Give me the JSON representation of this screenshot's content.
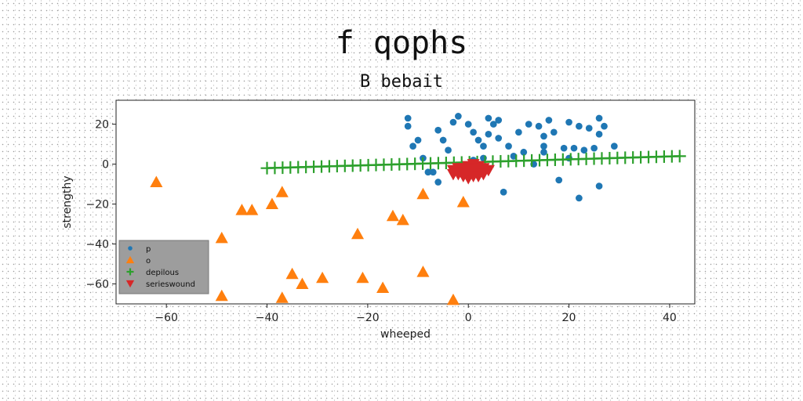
{
  "chart_data": {
    "type": "scatter",
    "title": "f qophs",
    "subtitle": "B bebait",
    "xlabel": "wheeped",
    "ylabel": "strengthy",
    "xlim": [
      -70,
      45
    ],
    "ylim": [
      -70,
      32
    ],
    "xticks": [
      -60,
      -40,
      -20,
      0,
      20,
      40
    ],
    "yticks": [
      20,
      0,
      -20,
      -40,
      -60
    ],
    "grid": false,
    "legend_position": "lower-left",
    "series": [
      {
        "name": "p",
        "marker": "circle",
        "color": "#1f77b4",
        "points": [
          [
            -12,
            23
          ],
          [
            -12,
            19
          ],
          [
            -10,
            12
          ],
          [
            -11,
            9
          ],
          [
            -9,
            3
          ],
          [
            -8,
            -4
          ],
          [
            -7,
            -4
          ],
          [
            -6,
            17
          ],
          [
            -5,
            12
          ],
          [
            -3,
            21
          ],
          [
            -2,
            24
          ],
          [
            0,
            20
          ],
          [
            1,
            16
          ],
          [
            2,
            12
          ],
          [
            3,
            9
          ],
          [
            4,
            15
          ],
          [
            5,
            20
          ],
          [
            6,
            22
          ],
          [
            4,
            23
          ],
          [
            6,
            13
          ],
          [
            8,
            9
          ],
          [
            9,
            4
          ],
          [
            10,
            16
          ],
          [
            11,
            6
          ],
          [
            12,
            20
          ],
          [
            13,
            0
          ],
          [
            14,
            19
          ],
          [
            15,
            14
          ],
          [
            15,
            9
          ],
          [
            15,
            6
          ],
          [
            16,
            22
          ],
          [
            17,
            16
          ],
          [
            18,
            -8
          ],
          [
            19,
            8
          ],
          [
            20,
            3
          ],
          [
            20,
            21
          ],
          [
            21,
            8
          ],
          [
            22,
            -17
          ],
          [
            22,
            19
          ],
          [
            23,
            7
          ],
          [
            24,
            18
          ],
          [
            25,
            8
          ],
          [
            26,
            15
          ],
          [
            26,
            23
          ],
          [
            27,
            19
          ],
          [
            29,
            9
          ],
          [
            26,
            -11
          ],
          [
            7,
            -14
          ],
          [
            -4,
            7
          ],
          [
            -6,
            -9
          ],
          [
            3,
            3
          ],
          [
            1,
            2
          ]
        ]
      },
      {
        "name": "o",
        "marker": "triangle-up",
        "color": "#ff7f0e",
        "points": [
          [
            -62,
            -9
          ],
          [
            -49,
            -37
          ],
          [
            -45,
            -23
          ],
          [
            -43,
            -23
          ],
          [
            -39,
            -20
          ],
          [
            -37,
            -14
          ],
          [
            -35,
            -55
          ],
          [
            -33,
            -60
          ],
          [
            -29,
            -57
          ],
          [
            -22,
            -35
          ],
          [
            -21,
            -57
          ],
          [
            -17,
            -62
          ],
          [
            -15,
            -26
          ],
          [
            -13,
            -28
          ],
          [
            -9,
            -15
          ],
          [
            -9,
            -54
          ],
          [
            -1,
            -19
          ],
          [
            -3,
            -68
          ],
          [
            -37,
            -67
          ],
          [
            -49,
            -66
          ]
        ]
      },
      {
        "name": "depilous",
        "marker": "plus",
        "color": "#2ca02c",
        "line_from": [
          -40,
          -2
        ],
        "line_to": [
          42,
          4
        ],
        "count": 54
      },
      {
        "name": "serieswound",
        "marker": "triangle-down",
        "color": "#d62728",
        "points": [
          [
            -3,
            -3
          ],
          [
            -2,
            -5
          ],
          [
            -1,
            -2
          ],
          [
            0,
            -4
          ],
          [
            0,
            -7
          ],
          [
            1,
            -3
          ],
          [
            1,
            -6
          ],
          [
            2,
            -2
          ],
          [
            2,
            -5
          ],
          [
            3,
            -4
          ],
          [
            -1,
            -6
          ],
          [
            0,
            -1
          ],
          [
            1,
            0
          ],
          [
            2,
            -1
          ],
          [
            3,
            -2
          ],
          [
            -2,
            -2
          ],
          [
            -1,
            -4
          ],
          [
            0,
            -5
          ],
          [
            1,
            -2
          ],
          [
            2,
            -6
          ],
          [
            3,
            -5
          ],
          [
            4,
            -3
          ],
          [
            -3,
            -5
          ],
          [
            0,
            -3
          ]
        ]
      }
    ]
  }
}
